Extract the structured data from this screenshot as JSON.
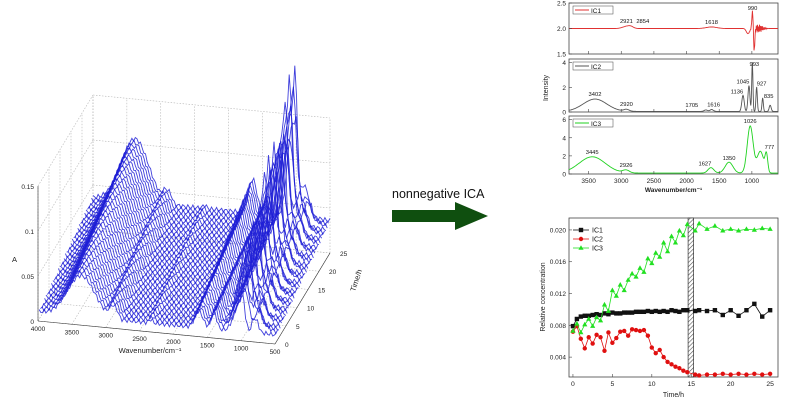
{
  "colors": {
    "spectra3d": "#1f1fd6",
    "ic1": "#e03131",
    "ic2": "#555555",
    "ic3": "#1fd21f",
    "arrow": "#0f4f0f",
    "conc_ic1": "#111111",
    "conc_ic2": "#e01010",
    "conc_ic3": "#22e022",
    "bar": "#888888"
  },
  "arrow_label": "nonnegative ICA",
  "chart_data": [
    {
      "id": "spectra_3d",
      "type": "line",
      "projection": "3d-waterfall",
      "xlabel": "Wavenumber/cm⁻¹",
      "ylabel": "Time/h",
      "zlabel": "A",
      "x_ticks": [
        "4000",
        "3500",
        "3000",
        "2500",
        "2000",
        "1500",
        "1000",
        "500"
      ],
      "y_ticks": [
        "0",
        "5",
        "10",
        "15",
        "20",
        "25"
      ],
      "z_ticks": [
        "0",
        "0.05",
        "0.1",
        "0.15"
      ],
      "xlim": [
        4000,
        500
      ],
      "ylim": [
        0,
        25
      ],
      "zlim": [
        0,
        0.15
      ],
      "grid": true,
      "series_count": 40
    },
    {
      "id": "ic_spectra",
      "type": "line",
      "xlabel": "Wavenumber/cm⁻¹",
      "ylabel": "Intensity",
      "x_ticks": [
        "3500",
        "3000",
        "2500",
        "2000",
        "1500",
        "1000"
      ],
      "xlim": [
        3800,
        600
      ],
      "panels": [
        {
          "legend": "IC1",
          "y_ticks": [
            "1.5",
            "2.0",
            "2.5"
          ],
          "ylim": [
            1.5,
            2.5
          ],
          "peaks": [
            {
              "x": 2921,
              "label": "2921"
            },
            {
              "x": 2854,
              "label": "2854"
            },
            {
              "x": 1618,
              "label": "1618"
            },
            {
              "x": 990,
              "label": "990"
            }
          ]
        },
        {
          "legend": "IC2",
          "y_ticks": [
            "0",
            "2",
            "4"
          ],
          "ylim": [
            0,
            4.3
          ],
          "peaks": [
            {
              "x": 3402,
              "label": "3402"
            },
            {
              "x": 2920,
              "label": "2920"
            },
            {
              "x": 1705,
              "label": "1705"
            },
            {
              "x": 1616,
              "label": "1616"
            },
            {
              "x": 1136,
              "label": "1136"
            },
            {
              "x": 1045,
              "label": "1045"
            },
            {
              "x": 993,
              "label": "993"
            },
            {
              "x": 927,
              "label": "927"
            },
            {
              "x": 835,
              "label": "835"
            }
          ]
        },
        {
          "legend": "IC3",
          "y_ticks": [
            "0",
            "2",
            "4",
            "6"
          ],
          "ylim": [
            0,
            6.4
          ],
          "peaks": [
            {
              "x": 3445,
              "label": "3445"
            },
            {
              "x": 2926,
              "label": "2926"
            },
            {
              "x": 1627,
              "label": "1627"
            },
            {
              "x": 1350,
              "label": "1350"
            },
            {
              "x": 1026,
              "label": "1026"
            },
            {
              "x": 777,
              "label": "777"
            }
          ]
        }
      ]
    },
    {
      "id": "concentration",
      "type": "line",
      "xlabel": "Time/h",
      "ylabel": "Relative concentration",
      "x_ticks": [
        "0",
        "5",
        "10",
        "15",
        "20",
        "25"
      ],
      "y_ticks": [
        "0.004",
        "0.008",
        "0.012",
        "0.016",
        "0.020"
      ],
      "xlim": [
        -0.5,
        26
      ],
      "ylim": [
        0.0015,
        0.0215
      ],
      "legend_position": "top-left",
      "annotation_band": [
        14.6,
        15.3
      ],
      "series": [
        {
          "name": "IC1",
          "marker": "square",
          "points": [
            [
              0,
              0.0079
            ],
            [
              0.5,
              0.0088
            ],
            [
              1,
              0.0091
            ],
            [
              1.5,
              0.0092
            ],
            [
              2,
              0.0092
            ],
            [
              2.5,
              0.0093
            ],
            [
              3,
              0.0094
            ],
            [
              3.5,
              0.0093
            ],
            [
              4,
              0.0095
            ],
            [
              4.5,
              0.0094
            ],
            [
              5,
              0.0096
            ],
            [
              5.5,
              0.0095
            ],
            [
              6,
              0.0095
            ],
            [
              6.5,
              0.0096
            ],
            [
              7,
              0.0096
            ],
            [
              7.5,
              0.0096
            ],
            [
              8,
              0.0097
            ],
            [
              8.5,
              0.0097
            ],
            [
              9,
              0.0097
            ],
            [
              9.5,
              0.0098
            ],
            [
              10,
              0.0097
            ],
            [
              10.5,
              0.0098
            ],
            [
              11,
              0.0097
            ],
            [
              11.5,
              0.0098
            ],
            [
              12,
              0.0097
            ],
            [
              12.5,
              0.0099
            ],
            [
              13,
              0.0098
            ],
            [
              13.5,
              0.0097
            ],
            [
              14,
              0.0099
            ],
            [
              14.5,
              0.0099
            ],
            [
              15.5,
              0.0098
            ],
            [
              16,
              0.0099
            ],
            [
              17,
              0.0098
            ],
            [
              18,
              0.0099
            ],
            [
              19,
              0.0093
            ],
            [
              20,
              0.0099
            ],
            [
              21,
              0.0092
            ],
            [
              22,
              0.0099
            ],
            [
              23,
              0.0107
            ],
            [
              24,
              0.0091
            ],
            [
              25,
              0.0099
            ]
          ]
        },
        {
          "name": "IC2",
          "marker": "circle",
          "points": [
            [
              0,
              0.0072
            ],
            [
              0.5,
              0.0079
            ],
            [
              1,
              0.0063
            ],
            [
              1.5,
              0.0051
            ],
            [
              2,
              0.0065
            ],
            [
              2.5,
              0.0057
            ],
            [
              3,
              0.0068
            ],
            [
              3.5,
              0.0065
            ],
            [
              4,
              0.0048
            ],
            [
              4.5,
              0.0071
            ],
            [
              5,
              0.0058
            ],
            [
              5.5,
              0.0064
            ],
            [
              6,
              0.0072
            ],
            [
              6.5,
              0.0073
            ],
            [
              7,
              0.0067
            ],
            [
              7.5,
              0.0075
            ],
            [
              8,
              0.0074
            ],
            [
              8.5,
              0.0073
            ],
            [
              9,
              0.0074
            ],
            [
              9.5,
              0.0067
            ],
            [
              10,
              0.0052
            ],
            [
              10.5,
              0.0045
            ],
            [
              11,
              0.0049
            ],
            [
              11.5,
              0.004
            ],
            [
              12,
              0.0034
            ],
            [
              12.5,
              0.0031
            ],
            [
              13,
              0.0028
            ],
            [
              13.5,
              0.0026
            ],
            [
              14,
              0.0023
            ],
            [
              14.5,
              0.0021
            ],
            [
              15.5,
              0.0018
            ],
            [
              16,
              0.0017
            ],
            [
              17,
              0.0018
            ],
            [
              18,
              0.0018
            ],
            [
              19,
              0.0019
            ],
            [
              20,
              0.0018
            ],
            [
              21,
              0.0019
            ],
            [
              22,
              0.0018
            ],
            [
              23,
              0.0019
            ],
            [
              24,
              0.0018
            ],
            [
              25,
              0.0019
            ]
          ]
        },
        {
          "name": "IC3",
          "marker": "triangle",
          "points": [
            [
              0,
              0.0073
            ],
            [
              0.5,
              0.0082
            ],
            [
              1,
              0.0071
            ],
            [
              1.5,
              0.0081
            ],
            [
              2,
              0.0088
            ],
            [
              2.5,
              0.0079
            ],
            [
              3,
              0.009
            ],
            [
              3.5,
              0.0086
            ],
            [
              4,
              0.0106
            ],
            [
              4.5,
              0.0098
            ],
            [
              5,
              0.0124
            ],
            [
              5.5,
              0.0117
            ],
            [
              6,
              0.0131
            ],
            [
              6.5,
              0.0124
            ],
            [
              7,
              0.0137
            ],
            [
              7.5,
              0.0145
            ],
            [
              8,
              0.0141
            ],
            [
              8.5,
              0.0152
            ],
            [
              9,
              0.0147
            ],
            [
              9.5,
              0.0164
            ],
            [
              10,
              0.0158
            ],
            [
              10.5,
              0.0171
            ],
            [
              11,
              0.0166
            ],
            [
              11.5,
              0.0184
            ],
            [
              12,
              0.0173
            ],
            [
              12.5,
              0.0192
            ],
            [
              13,
              0.0184
            ],
            [
              13.5,
              0.0199
            ],
            [
              14,
              0.0193
            ],
            [
              14.5,
              0.0207
            ],
            [
              15.5,
              0.0199
            ],
            [
              16,
              0.0208
            ],
            [
              17,
              0.0201
            ],
            [
              18,
              0.0205
            ],
            [
              19,
              0.0199
            ],
            [
              20,
              0.0201
            ],
            [
              21,
              0.0199
            ],
            [
              22,
              0.0201
            ],
            [
              23,
              0.02
            ],
            [
              24,
              0.0202
            ],
            [
              25,
              0.0201
            ]
          ]
        }
      ]
    }
  ]
}
